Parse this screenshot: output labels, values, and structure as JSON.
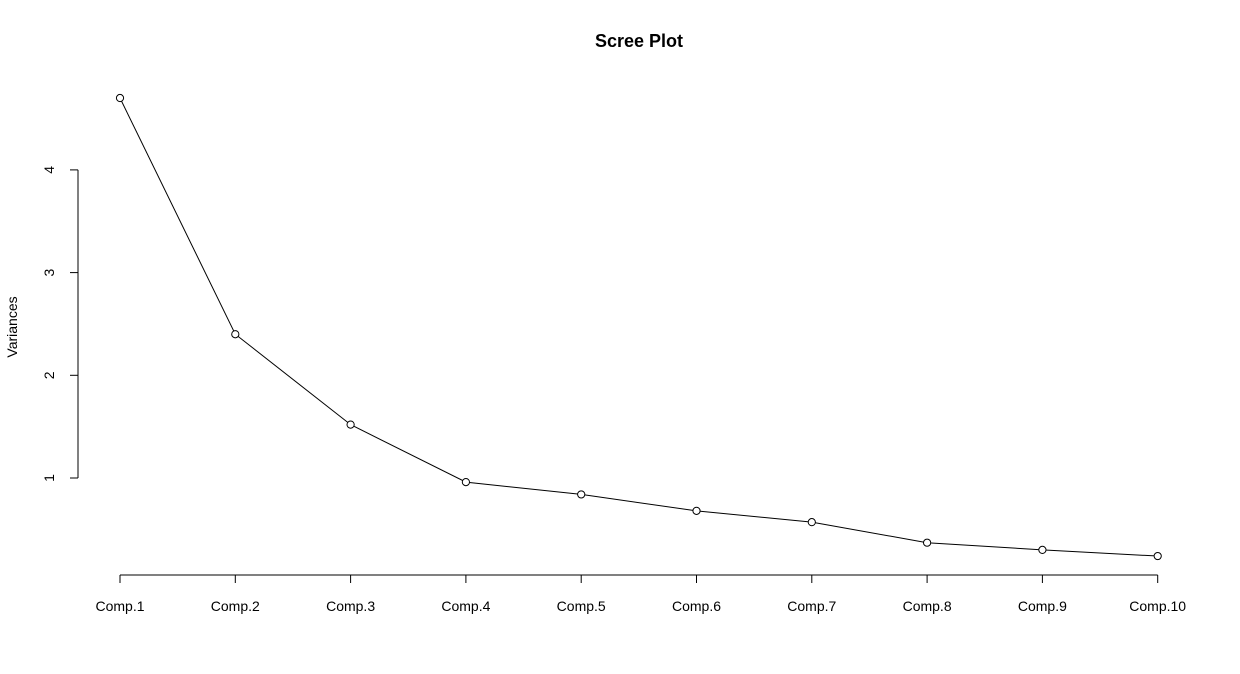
{
  "chart_data": {
    "type": "line",
    "title": "Scree Plot",
    "xlabel": "",
    "ylabel": "Variances",
    "categories": [
      "Comp.1",
      "Comp.2",
      "Comp.3",
      "Comp.4",
      "Comp.5",
      "Comp.6",
      "Comp.7",
      "Comp.8",
      "Comp.9",
      "Comp.10"
    ],
    "values": [
      4.7,
      2.4,
      1.52,
      0.96,
      0.84,
      0.68,
      0.57,
      0.37,
      0.3,
      0.24
    ],
    "yticks": [
      1,
      2,
      3,
      4
    ],
    "ylim": [
      0.24,
      4.7
    ],
    "grid": false,
    "markers": "open-circle"
  }
}
